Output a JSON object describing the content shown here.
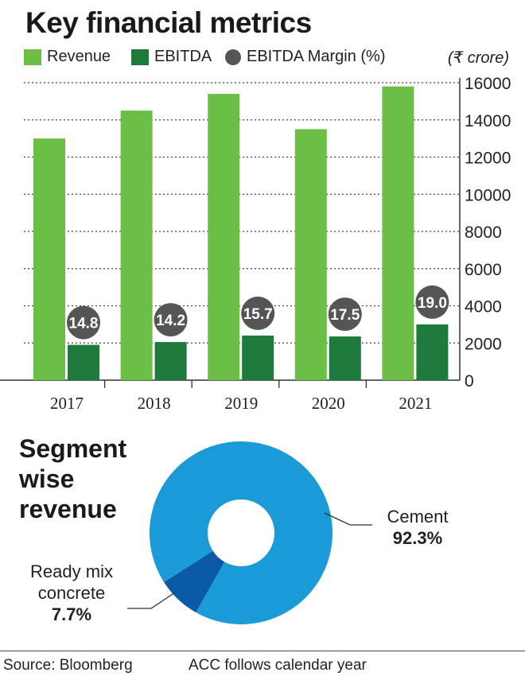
{
  "title": "Key financial metrics",
  "unit": "(₹ crore)",
  "legend": {
    "revenue": "Revenue",
    "ebitda": "EBITDA",
    "margin": "EBITDA Margin (%)"
  },
  "colors": {
    "revenue": "#6cbf46",
    "ebitda": "#1e7a3c",
    "margin": "#555555",
    "cement": "#1a9ad6",
    "rmc": "#0b5aa6",
    "grid": "#444444"
  },
  "chart_data": [
    {
      "type": "bar",
      "title": "Key financial metrics",
      "ylabel": "",
      "xlabel": "",
      "categories": [
        "2017",
        "2018",
        "2019",
        "2020",
        "2021"
      ],
      "series": [
        {
          "name": "Revenue",
          "values": [
            13000,
            14500,
            15400,
            13500,
            15800
          ]
        },
        {
          "name": "EBITDA",
          "values": [
            1900,
            2050,
            2400,
            2350,
            3000
          ]
        },
        {
          "name": "EBITDA Margin (%)",
          "values": [
            14.8,
            14.2,
            15.7,
            17.5,
            19.0
          ],
          "labels": [
            "14.8",
            "14.2",
            "15.7",
            "17.5",
            "19.0"
          ]
        }
      ],
      "ylim": [
        0,
        16000
      ],
      "yticks": [
        0,
        2000,
        4000,
        6000,
        8000,
        10000,
        12000,
        14000,
        16000
      ],
      "axis_side": "right",
      "grid": true,
      "legend_position": "top"
    },
    {
      "type": "pie",
      "title": "Segment wise revenue",
      "categories": [
        "Cement",
        "Ready mix concrete"
      ],
      "values": [
        92.3,
        7.7
      ],
      "value_labels": [
        "92.3%",
        "7.7%"
      ]
    }
  ],
  "segment": {
    "title_lines": [
      "Segment",
      "wise",
      "revenue"
    ],
    "cement_label": "Cement",
    "cement_value": "92.3%",
    "rmc_label_lines": [
      "Ready mix",
      "concrete"
    ],
    "rmc_value": "7.7%"
  },
  "footer": {
    "source": "Source: Bloomberg",
    "note": "ACC follows calendar year"
  }
}
